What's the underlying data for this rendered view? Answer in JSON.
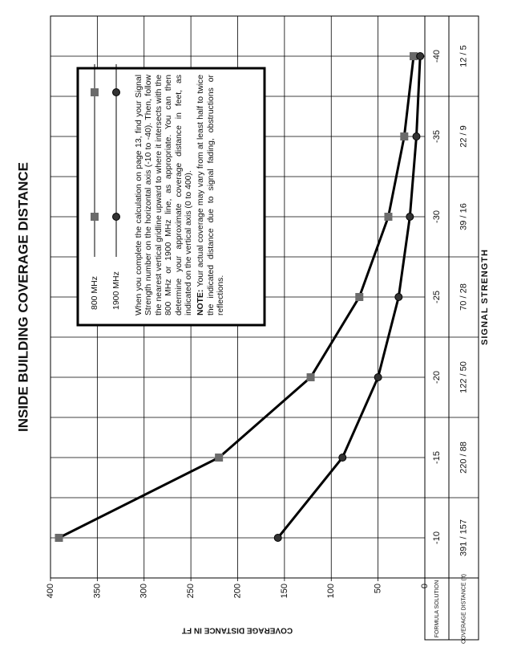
{
  "chart_data": {
    "type": "line",
    "title": "INSIDE BUILDING COVERAGE DISTANCE",
    "xlabel": "SIGNAL STRENGTH",
    "ylabel": "COVERAGE DISTANCE IN FT",
    "x": [
      -10,
      -15,
      -20,
      -25,
      -30,
      -35,
      -40
    ],
    "xlim": [
      -7.5,
      -42.5
    ],
    "xticks": [
      -10,
      -15,
      -20,
      -25,
      -30,
      -35,
      -40
    ],
    "minor_xticks": [
      -12.5,
      -17.5,
      -22.5,
      -27.5,
      -32.5,
      -37.5
    ],
    "ylim": [
      0,
      400
    ],
    "yticks": [
      0,
      50,
      100,
      150,
      200,
      250,
      300,
      350,
      400
    ],
    "grid": true,
    "series": [
      {
        "name": "800 MHz",
        "color": "#6b6b6b",
        "marker": "square",
        "values": [
          391,
          220,
          122,
          70,
          39,
          22,
          12
        ]
      },
      {
        "name": "1900 MHz",
        "color": "#333333",
        "marker": "circle",
        "values": [
          157,
          88,
          50,
          28,
          16,
          9,
          5
        ]
      }
    ],
    "table": {
      "row_labels": [
        "FORMULA SOLUTION",
        "COVERAGE DISTANCE (ft)"
      ],
      "values": [
        "391 / 157",
        "220 / 88",
        "122 / 50",
        "70 / 28",
        "39 / 16",
        "22 / 9",
        "12 / 5"
      ]
    },
    "note": {
      "text": "When you complete the calculation on page 13, find your Signal Strength number on the horizontal axis (-10 to -40). Then, follow the nearest vertical gridline upward to where it intersects with the 800 MHz or 1900 MHz line, as appropriate. You can then determine your approximate coverage distance in feet, as indicated on the vertical axis (0 to 400).",
      "label": "NOTE:",
      "remark": "Your actual coverage may vary from at least half to twice the indicated distance due to signal fading, obstructions or reflections."
    }
  }
}
